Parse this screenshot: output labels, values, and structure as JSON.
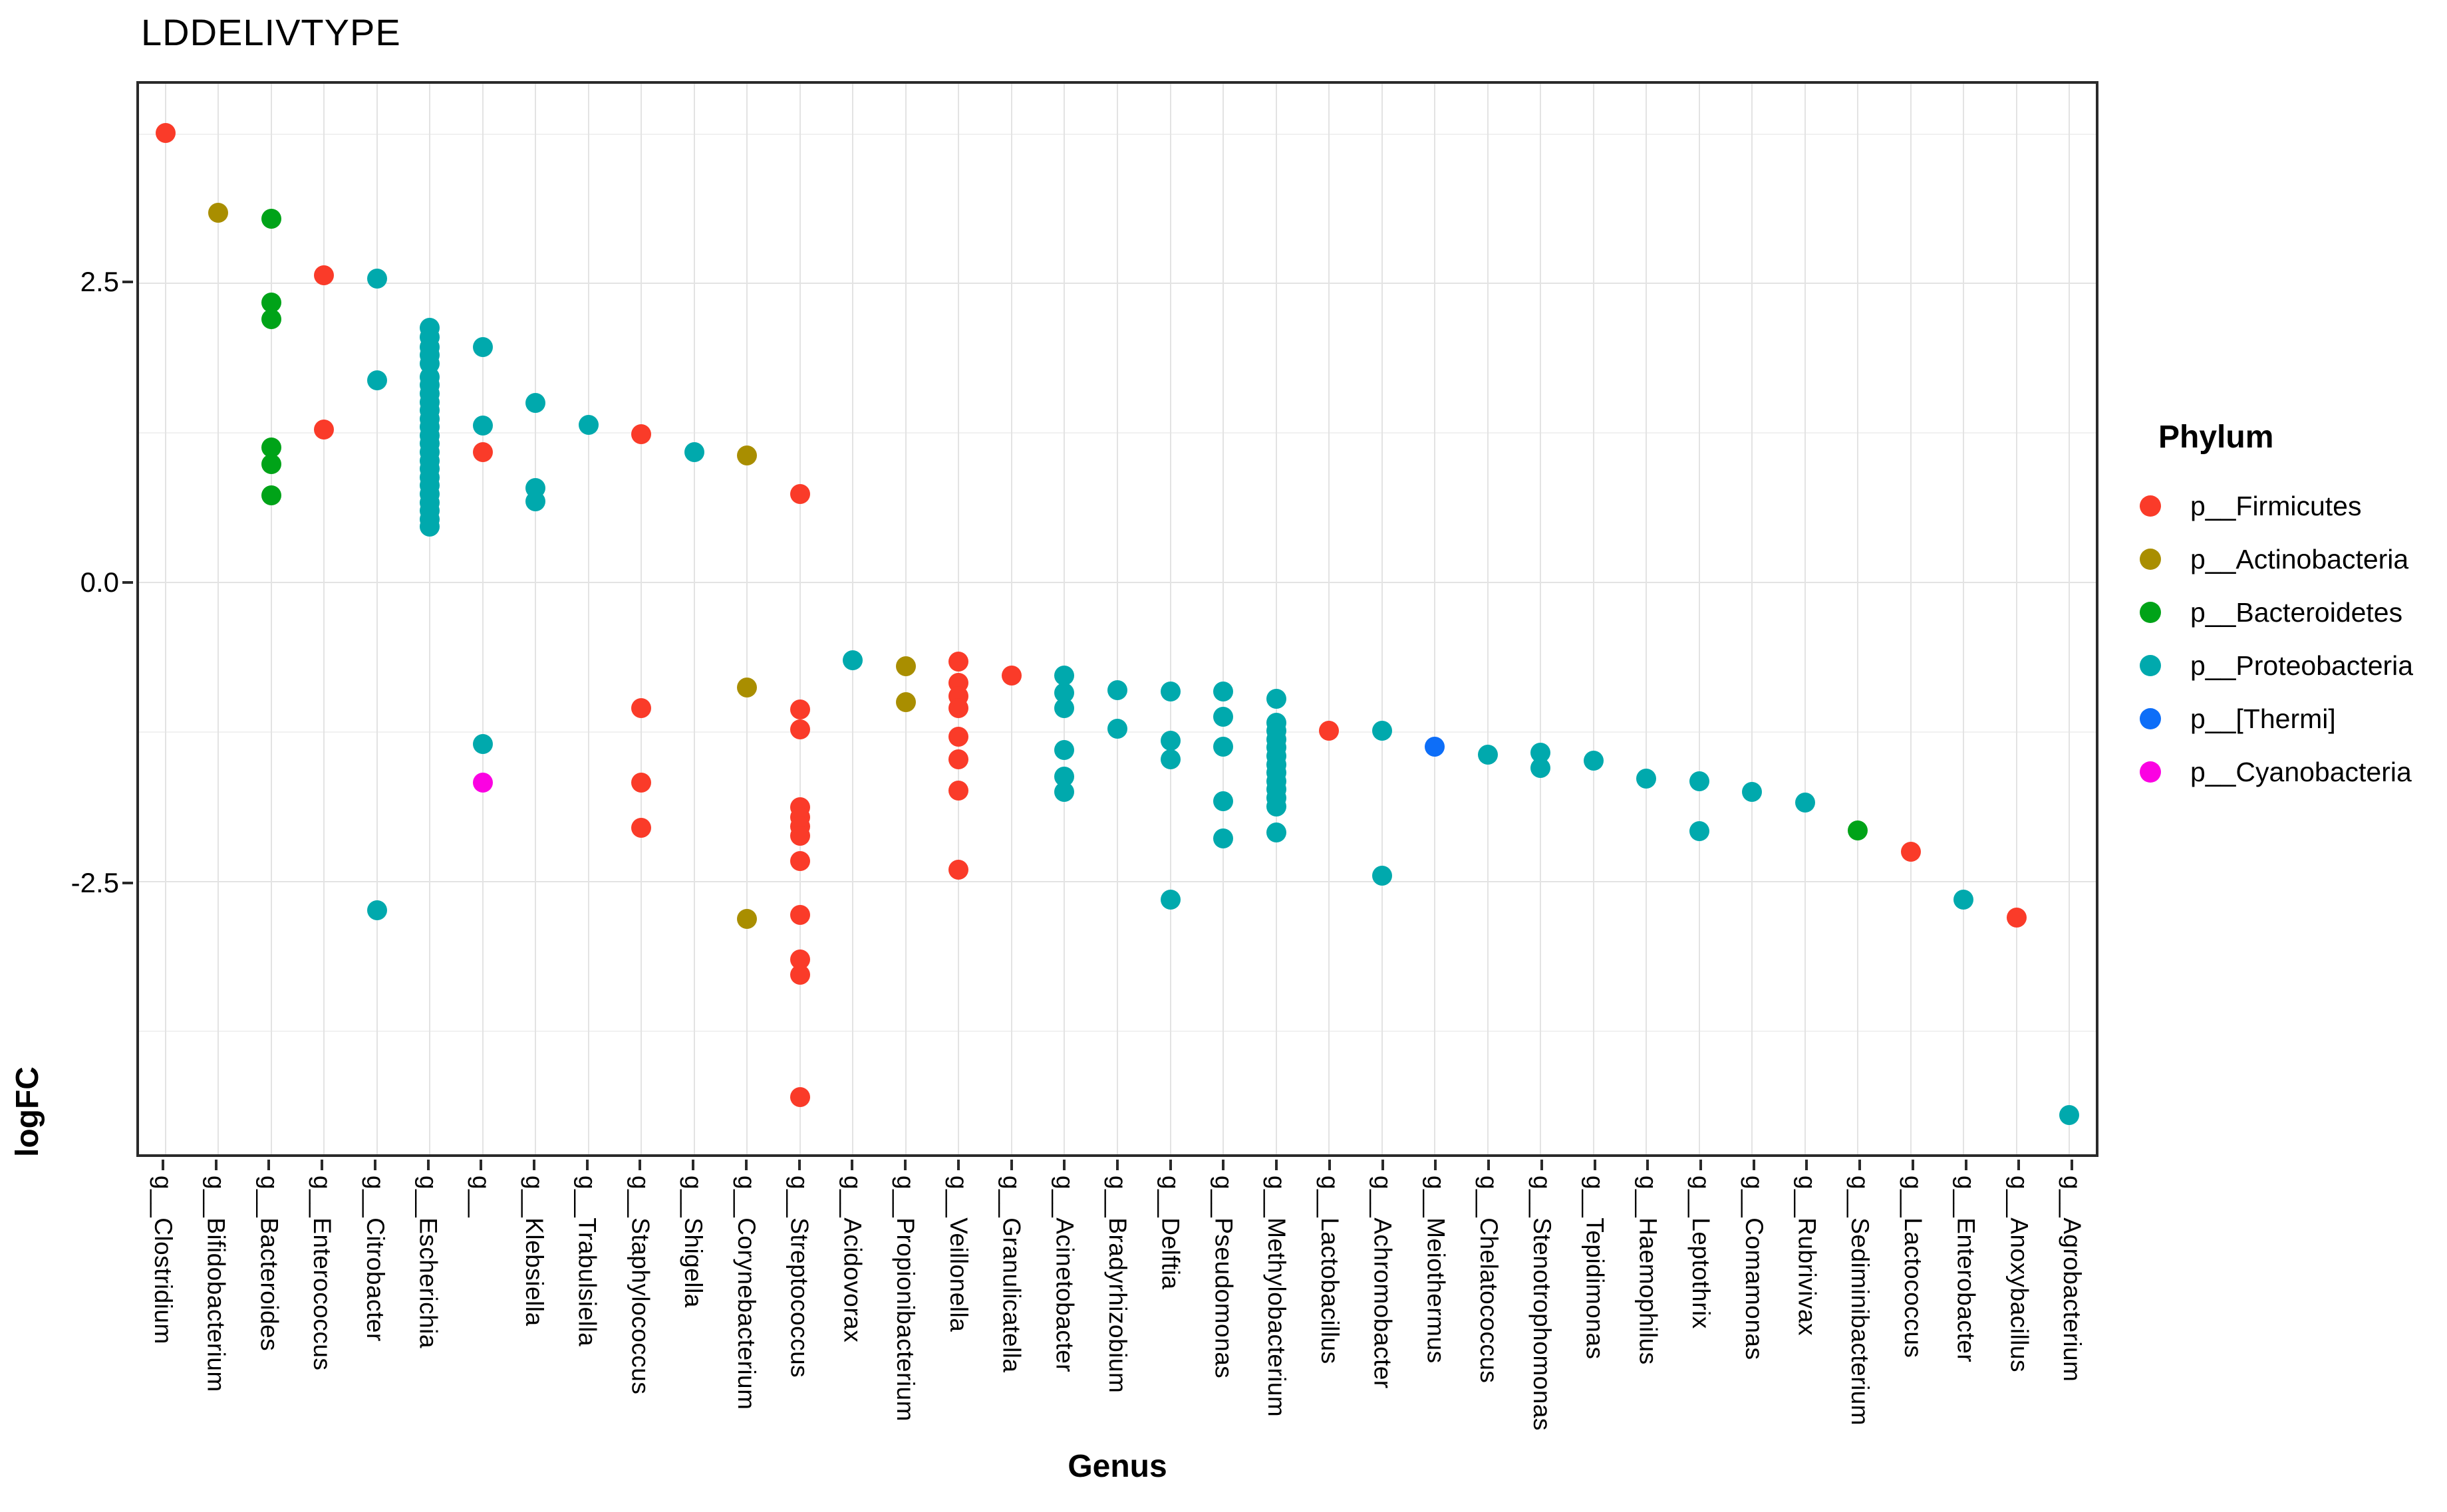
{
  "title": {
    "text": "LDDELIVTYPE"
  },
  "axes": {
    "x_title": "Genus",
    "y_title": "logFC",
    "y_major_ticks": [
      {
        "label": "2.5",
        "value": 2.5
      },
      {
        "label": "0.0",
        "value": 0.0
      },
      {
        "label": "-2.5",
        "value": -2.5
      }
    ],
    "y_minor_ticks": [
      3.75,
      1.25,
      -1.25,
      -3.75
    ],
    "ylim_top": 4.17,
    "ylim_bottom": -4.78
  },
  "legend": {
    "title": "Phylum",
    "items": [
      {
        "label": "p__Firmicutes",
        "key": "Firmicutes",
        "color": "#fa3b29"
      },
      {
        "label": "p__Actinobacteria",
        "key": "Actinobacteria",
        "color": "#a98e00"
      },
      {
        "label": "p__Bacteroidetes",
        "key": "Bacteroidetes",
        "color": "#00a318"
      },
      {
        "label": "p__Proteobacteria",
        "key": "Proteobacteria",
        "color": "#00a9ad"
      },
      {
        "label": "p__[Thermi]",
        "key": "Thermi",
        "color": "#0d6ef8"
      },
      {
        "label": "p__Cyanobacteria",
        "key": "Cyanobacteria",
        "color": "#fb02e2"
      }
    ]
  },
  "chart_data": {
    "type": "scatter",
    "title": "LDDELIVTYPE",
    "xlabel": "Genus",
    "ylabel": "logFC",
    "ylim": [
      4.17,
      -4.78
    ],
    "grid": "on",
    "legend_position": "right",
    "point_colors_by_phylum": {
      "Firmicutes": "#fa3b29",
      "Actinobacteria": "#a98e00",
      "Bacteroidetes": "#00a318",
      "Proteobacteria": "#00a9ad",
      "Thermi": "#0d6ef8",
      "Cyanobacteria": "#fb02e2"
    },
    "categories": [
      {
        "label": "g__Clostridium",
        "points": [
          {
            "v": 3.76,
            "p": "Firmicutes"
          }
        ]
      },
      {
        "label": "g__Bifidobacterium",
        "points": [
          {
            "v": 3.09,
            "p": "Actinobacteria"
          }
        ]
      },
      {
        "label": "g__Bacteroides",
        "points": [
          {
            "v": 3.04,
            "p": "Bacteroidetes"
          },
          {
            "v": 2.34,
            "p": "Bacteroidetes"
          },
          {
            "v": 2.2,
            "p": "Bacteroidetes"
          },
          {
            "v": 1.13,
            "p": "Bacteroidetes"
          },
          {
            "v": 0.99,
            "p": "Bacteroidetes"
          },
          {
            "v": 0.73,
            "p": "Bacteroidetes"
          }
        ]
      },
      {
        "label": "g__Enterococcus",
        "points": [
          {
            "v": 2.57,
            "p": "Firmicutes"
          },
          {
            "v": 1.28,
            "p": "Firmicutes"
          }
        ]
      },
      {
        "label": "g__Citrobacter",
        "points": [
          {
            "v": 2.54,
            "p": "Proteobacteria"
          },
          {
            "v": 1.69,
            "p": "Proteobacteria"
          },
          {
            "v": -2.74,
            "p": "Proteobacteria"
          }
        ]
      },
      {
        "label": "g__Escherichia",
        "points": [
          {
            "v": 2.13,
            "p": "Proteobacteria"
          },
          {
            "v": 2.05,
            "p": "Proteobacteria"
          },
          {
            "v": 1.97,
            "p": "Proteobacteria"
          },
          {
            "v": 1.9,
            "p": "Proteobacteria"
          },
          {
            "v": 1.83,
            "p": "Proteobacteria"
          },
          {
            "v": 1.72,
            "p": "Proteobacteria"
          },
          {
            "v": 1.65,
            "p": "Proteobacteria"
          },
          {
            "v": 1.58,
            "p": "Proteobacteria"
          },
          {
            "v": 1.51,
            "p": "Proteobacteria"
          },
          {
            "v": 1.44,
            "p": "Proteobacteria"
          },
          {
            "v": 1.37,
            "p": "Proteobacteria"
          },
          {
            "v": 1.3,
            "p": "Proteobacteria"
          },
          {
            "v": 1.23,
            "p": "Proteobacteria"
          },
          {
            "v": 1.16,
            "p": "Proteobacteria"
          },
          {
            "v": 1.09,
            "p": "Proteobacteria"
          },
          {
            "v": 1.02,
            "p": "Proteobacteria"
          },
          {
            "v": 0.95,
            "p": "Proteobacteria"
          },
          {
            "v": 0.88,
            "p": "Proteobacteria"
          },
          {
            "v": 0.81,
            "p": "Proteobacteria"
          },
          {
            "v": 0.74,
            "p": "Proteobacteria"
          },
          {
            "v": 0.67,
            "p": "Proteobacteria"
          },
          {
            "v": 0.6,
            "p": "Proteobacteria"
          },
          {
            "v": 0.53,
            "p": "Proteobacteria"
          },
          {
            "v": 0.47,
            "p": "Proteobacteria"
          }
        ]
      },
      {
        "label": "g__",
        "points": [
          {
            "v": 1.97,
            "p": "Proteobacteria"
          },
          {
            "v": 1.31,
            "p": "Proteobacteria"
          },
          {
            "v": 1.09,
            "p": "Firmicutes"
          },
          {
            "v": -1.35,
            "p": "Proteobacteria"
          },
          {
            "v": -1.67,
            "p": "Cyanobacteria"
          }
        ]
      },
      {
        "label": "g__Klebsiella",
        "points": [
          {
            "v": 1.5,
            "p": "Proteobacteria"
          },
          {
            "v": 0.79,
            "p": "Proteobacteria"
          },
          {
            "v": 0.68,
            "p": "Proteobacteria"
          }
        ]
      },
      {
        "label": "g__Trabulsiella",
        "points": [
          {
            "v": 1.32,
            "p": "Proteobacteria"
          }
        ]
      },
      {
        "label": "g__Staphylococcus",
        "points": [
          {
            "v": 1.24,
            "p": "Firmicutes"
          },
          {
            "v": -1.05,
            "p": "Firmicutes"
          },
          {
            "v": -1.67,
            "p": "Firmicutes"
          },
          {
            "v": -2.05,
            "p": "Firmicutes"
          }
        ]
      },
      {
        "label": "g__Shigella",
        "points": [
          {
            "v": 1.09,
            "p": "Proteobacteria"
          }
        ]
      },
      {
        "label": "g__Corynebacterium",
        "points": [
          {
            "v": 1.06,
            "p": "Actinobacteria"
          },
          {
            "v": -0.88,
            "p": "Actinobacteria"
          },
          {
            "v": -2.81,
            "p": "Actinobacteria"
          }
        ]
      },
      {
        "label": "g__Streptococcus",
        "points": [
          {
            "v": 0.74,
            "p": "Firmicutes"
          },
          {
            "v": -1.06,
            "p": "Firmicutes"
          },
          {
            "v": -1.23,
            "p": "Firmicutes"
          },
          {
            "v": -1.88,
            "p": "Firmicutes"
          },
          {
            "v": -1.96,
            "p": "Firmicutes"
          },
          {
            "v": -2.04,
            "p": "Firmicutes"
          },
          {
            "v": -2.12,
            "p": "Firmicutes"
          },
          {
            "v": -2.33,
            "p": "Firmicutes"
          },
          {
            "v": -2.78,
            "p": "Firmicutes"
          },
          {
            "v": -3.15,
            "p": "Firmicutes"
          },
          {
            "v": -3.28,
            "p": "Firmicutes"
          },
          {
            "v": -4.3,
            "p": "Firmicutes"
          }
        ]
      },
      {
        "label": "g__Acidovorax",
        "points": [
          {
            "v": -0.65,
            "p": "Proteobacteria"
          }
        ]
      },
      {
        "label": "g__Propionibacterium",
        "points": [
          {
            "v": -0.7,
            "p": "Actinobacteria"
          },
          {
            "v": -1.0,
            "p": "Actinobacteria"
          }
        ]
      },
      {
        "label": "g__Veillonella",
        "points": [
          {
            "v": -0.66,
            "p": "Firmicutes"
          },
          {
            "v": -0.84,
            "p": "Firmicutes"
          },
          {
            "v": -0.95,
            "p": "Firmicutes"
          },
          {
            "v": -1.05,
            "p": "Firmicutes"
          },
          {
            "v": -1.29,
            "p": "Firmicutes"
          },
          {
            "v": -1.48,
            "p": "Firmicutes"
          },
          {
            "v": -1.74,
            "p": "Firmicutes"
          },
          {
            "v": -2.4,
            "p": "Firmicutes"
          }
        ]
      },
      {
        "label": "g__Granulicatella",
        "points": [
          {
            "v": -0.78,
            "p": "Firmicutes"
          }
        ]
      },
      {
        "label": "g__Acinetobacter",
        "points": [
          {
            "v": -0.78,
            "p": "Proteobacteria"
          },
          {
            "v": -0.92,
            "p": "Proteobacteria"
          },
          {
            "v": -1.05,
            "p": "Proteobacteria"
          },
          {
            "v": -1.4,
            "p": "Proteobacteria"
          },
          {
            "v": -1.62,
            "p": "Proteobacteria"
          },
          {
            "v": -1.75,
            "p": "Proteobacteria"
          }
        ]
      },
      {
        "label": "g__Bradyrhizobium",
        "points": [
          {
            "v": -0.9,
            "p": "Proteobacteria"
          },
          {
            "v": -1.22,
            "p": "Proteobacteria"
          }
        ]
      },
      {
        "label": "g__Delftia",
        "points": [
          {
            "v": -0.91,
            "p": "Proteobacteria"
          },
          {
            "v": -1.32,
            "p": "Proteobacteria"
          },
          {
            "v": -1.48,
            "p": "Proteobacteria"
          },
          {
            "v": -2.65,
            "p": "Proteobacteria"
          }
        ]
      },
      {
        "label": "g__Pseudomonas",
        "points": [
          {
            "v": -0.91,
            "p": "Proteobacteria"
          },
          {
            "v": -1.12,
            "p": "Proteobacteria"
          },
          {
            "v": -1.37,
            "p": "Proteobacteria"
          },
          {
            "v": -1.83,
            "p": "Proteobacteria"
          },
          {
            "v": -2.14,
            "p": "Proteobacteria"
          }
        ]
      },
      {
        "label": "g__Methylobacterium",
        "points": [
          {
            "v": -0.97,
            "p": "Proteobacteria"
          },
          {
            "v": -1.17,
            "p": "Proteobacteria"
          },
          {
            "v": -1.24,
            "p": "Proteobacteria"
          },
          {
            "v": -1.31,
            "p": "Proteobacteria"
          },
          {
            "v": -1.38,
            "p": "Proteobacteria"
          },
          {
            "v": -1.45,
            "p": "Proteobacteria"
          },
          {
            "v": -1.52,
            "p": "Proteobacteria"
          },
          {
            "v": -1.59,
            "p": "Proteobacteria"
          },
          {
            "v": -1.66,
            "p": "Proteobacteria"
          },
          {
            "v": -1.73,
            "p": "Proteobacteria"
          },
          {
            "v": -1.8,
            "p": "Proteobacteria"
          },
          {
            "v": -1.87,
            "p": "Proteobacteria"
          },
          {
            "v": -2.09,
            "p": "Proteobacteria"
          }
        ]
      },
      {
        "label": "g__Lactobacillus",
        "points": [
          {
            "v": -1.24,
            "p": "Firmicutes"
          }
        ]
      },
      {
        "label": "g__Achromobacter",
        "points": [
          {
            "v": -1.24,
            "p": "Proteobacteria"
          },
          {
            "v": -2.45,
            "p": "Proteobacteria"
          }
        ]
      },
      {
        "label": "g__Meiothermus",
        "points": [
          {
            "v": -1.37,
            "p": "Thermi"
          }
        ]
      },
      {
        "label": "g__Chelatococcus",
        "points": [
          {
            "v": -1.44,
            "p": "Proteobacteria"
          }
        ]
      },
      {
        "label": "g__Stenotrophomonas",
        "points": [
          {
            "v": -1.42,
            "p": "Proteobacteria"
          },
          {
            "v": -1.55,
            "p": "Proteobacteria"
          }
        ]
      },
      {
        "label": "g__Tepidimonas",
        "points": [
          {
            "v": -1.49,
            "p": "Proteobacteria"
          }
        ]
      },
      {
        "label": "g__Haemophilus",
        "points": [
          {
            "v": -1.64,
            "p": "Proteobacteria"
          }
        ]
      },
      {
        "label": "g__Leptothrix",
        "points": [
          {
            "v": -1.66,
            "p": "Proteobacteria"
          },
          {
            "v": -2.08,
            "p": "Proteobacteria"
          }
        ]
      },
      {
        "label": "g__Comamonas",
        "points": [
          {
            "v": -1.75,
            "p": "Proteobacteria"
          }
        ]
      },
      {
        "label": "g__Rubrivivax",
        "points": [
          {
            "v": -1.84,
            "p": "Proteobacteria"
          }
        ]
      },
      {
        "label": "g__Sediminibacterium",
        "points": [
          {
            "v": -2.07,
            "p": "Bacteroidetes"
          }
        ]
      },
      {
        "label": "g__Lactococcus",
        "points": [
          {
            "v": -2.25,
            "p": "Firmicutes"
          }
        ]
      },
      {
        "label": "g__Enterobacter",
        "points": [
          {
            "v": -2.65,
            "p": "Proteobacteria"
          }
        ]
      },
      {
        "label": "g__Anoxybacillus",
        "points": [
          {
            "v": -2.8,
            "p": "Firmicutes"
          }
        ]
      },
      {
        "label": "g__Agrobacterium",
        "points": [
          {
            "v": -4.45,
            "p": "Proteobacteria"
          }
        ]
      }
    ]
  }
}
